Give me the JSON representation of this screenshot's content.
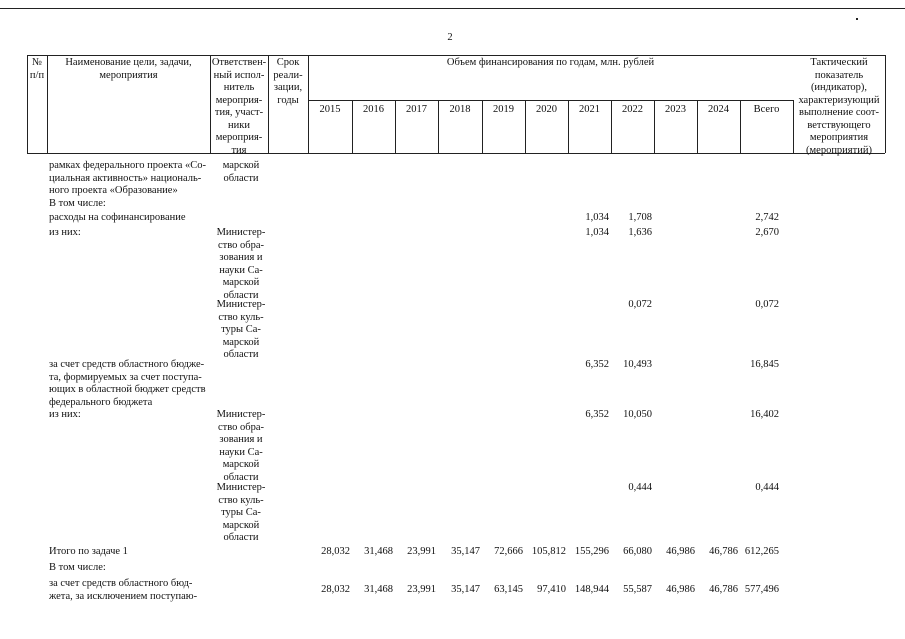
{
  "page_number": "2",
  "table": {
    "header": {
      "number": "№\nп/п",
      "name": "Наименование цели, задачи,\nмероприятия",
      "executor": "Ответствен-\nный испол-\nнитель\nмероприя-\nтия, участ-\nники\nмероприя-\nтия",
      "term": "Срок\nреали-\nзации,\nгоды",
      "funding": "Объем финансирования по годам, млн. рублей",
      "years": [
        "2015",
        "2016",
        "2017",
        "2018",
        "2019",
        "2020",
        "2021",
        "2022",
        "2023",
        "2024"
      ],
      "total": "Всего",
      "indicator": "Тактический\nпоказатель\n(индикатор),\nхарактеризующий\nвыполнение соот-\nветствующего\nмероприятия\n(мероприятий)"
    },
    "rows": [
      {
        "name": "рамках федерального проекта «Со-\nциальная активность» националь-\nного проекта «Образование»",
        "executor": "марской\nобласти",
        "values": [
          null,
          null,
          null,
          null,
          null,
          null,
          null,
          null,
          null,
          null,
          null
        ]
      },
      {
        "name": "В том числе:",
        "executor": null,
        "values": [
          null,
          null,
          null,
          null,
          null,
          null,
          null,
          null,
          null,
          null,
          null
        ]
      },
      {
        "name": "расходы на софинансирование",
        "executor": null,
        "values": [
          null,
          null,
          null,
          null,
          null,
          null,
          "1,034",
          "1,708",
          null,
          null,
          "2,742"
        ]
      },
      {
        "name": "из них:",
        "executor": "Министер-\nство обра-\nзования и\nнауки Са-\nмарской\nобласти",
        "values": [
          null,
          null,
          null,
          null,
          null,
          null,
          "1,034",
          "1,636",
          null,
          null,
          "2,670"
        ]
      },
      {
        "name": null,
        "executor": "Министер-\nство куль-\nтуры Са-\nмарской\nобласти",
        "values": [
          null,
          null,
          null,
          null,
          null,
          null,
          null,
          "0,072",
          null,
          null,
          "0,072"
        ]
      },
      {
        "name": "за счет средств областного бюдже-\nта, формируемых за счет поступа-\nющих в областной бюджет средств\nфедерального бюджета",
        "executor": null,
        "values": [
          null,
          null,
          null,
          null,
          null,
          null,
          "6,352",
          "10,493",
          null,
          null,
          "16,845"
        ]
      },
      {
        "name": "из них:",
        "executor": "Министер-\nство обра-\nзования и\nнауки Са-\nмарской\nобласти",
        "values": [
          null,
          null,
          null,
          null,
          null,
          null,
          "6,352",
          "10,050",
          null,
          null,
          "16,402"
        ]
      },
      {
        "name": null,
        "executor": "Министер-\nство куль-\nтуры Са-\nмарской\nобласти",
        "values": [
          null,
          null,
          null,
          null,
          null,
          null,
          null,
          "0,444",
          null,
          null,
          "0,444"
        ]
      },
      {
        "name": "Итого по задаче 1",
        "executor": null,
        "values": [
          "28,032",
          "31,468",
          "23,991",
          "35,147",
          "72,666",
          "105,812",
          "155,296",
          "66,080",
          "46,986",
          "46,786",
          "612,265"
        ]
      },
      {
        "name": "В том числе:",
        "executor": null,
        "values": [
          null,
          null,
          null,
          null,
          null,
          null,
          null,
          null,
          null,
          null,
          null
        ]
      },
      {
        "name": "за счет средств областного бюд-\nжета, за исключением поступаю-",
        "executor": null,
        "values": [
          "28,032",
          "31,468",
          "23,991",
          "35,147",
          "63,145",
          "97,410",
          "148,944",
          "55,587",
          "46,986",
          "46,786",
          "577,496"
        ]
      }
    ]
  }
}
